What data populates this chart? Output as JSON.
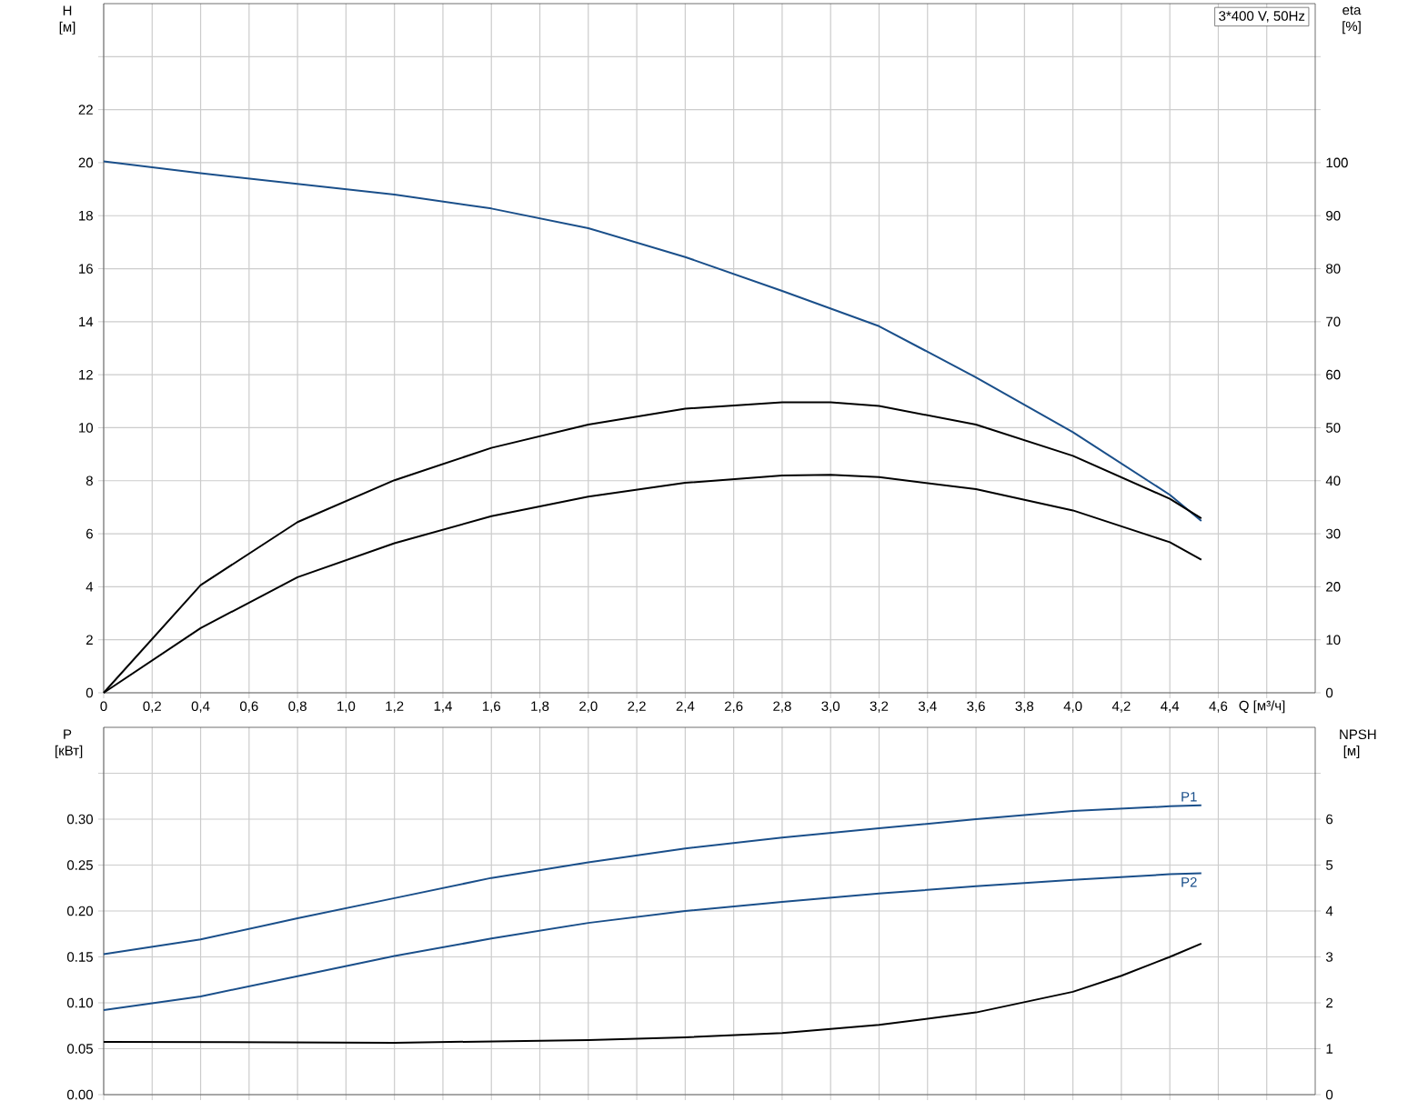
{
  "chart_data": [
    {
      "type": "line",
      "xlabel": "Q [м³/ч]",
      "ylabel": "H [м]",
      "y2label": "eta [%]",
      "annotations": [
        "3*400 V, 50Hz"
      ],
      "grid": true,
      "marker": "none",
      "line_style": "solid",
      "xlim": [
        0,
        5
      ],
      "xticks": [
        0,
        {
          "value": 0.2,
          "label": "0,2"
        },
        {
          "value": 0.4,
          "label": "0,4"
        },
        {
          "value": 0.6,
          "label": "0,6"
        },
        {
          "value": 0.8,
          "label": "0,8"
        },
        {
          "value": 1.0,
          "label": "1,0"
        },
        {
          "value": 1.2,
          "label": "1,2"
        },
        {
          "value": 1.4,
          "label": "1,4"
        },
        {
          "value": 1.6,
          "label": "1,6"
        },
        {
          "value": 1.8,
          "label": "1,8"
        },
        {
          "value": 2.0,
          "label": "2,0"
        },
        {
          "value": 2.2,
          "label": "2,2"
        },
        {
          "value": 2.4,
          "label": "2,4"
        },
        {
          "value": 2.6,
          "label": "2,6"
        },
        {
          "value": 2.8,
          "label": "2,8"
        },
        {
          "value": 3.0,
          "label": "3,0"
        },
        {
          "value": 3.2,
          "label": "3,2"
        },
        {
          "value": 3.4,
          "label": "3,4"
        },
        {
          "value": 3.6,
          "label": "3,6"
        },
        {
          "value": 3.8,
          "label": "3,8"
        },
        {
          "value": 4.0,
          "label": "4,0"
        },
        {
          "value": 4.2,
          "label": "4,2"
        },
        {
          "value": 4.4,
          "label": "4,4"
        },
        {
          "value": 4.6,
          "label": "4,6"
        },
        {
          "value": 4.8,
          "label": null
        }
      ],
      "ylim": [
        0,
        26
      ],
      "yticks": [
        0,
        2,
        4,
        6,
        8,
        10,
        12,
        14,
        16,
        18,
        20,
        22,
        {
          "value": 24,
          "label": null
        }
      ],
      "y2lim": [
        0,
        130
      ],
      "y2ticks": [
        0,
        10,
        20,
        30,
        40,
        50,
        60,
        70,
        80,
        90,
        100,
        {
          "value": 110,
          "label": null
        },
        {
          "value": 120,
          "label": null
        }
      ],
      "series": [
        {
          "color": "#1a4f8a",
          "axis": "y",
          "x": [
            0,
            0.4,
            0.8,
            1.2,
            1.6,
            2.0,
            2.4,
            2.8,
            3.2,
            3.6,
            4.0,
            4.4,
            4.53
          ],
          "values": [
            20.05,
            19.6,
            19.2,
            18.8,
            18.27,
            17.53,
            16.44,
            15.16,
            13.83,
            11.9,
            9.83,
            7.47,
            6.48
          ]
        },
        {
          "color": "#000000",
          "axis": "y2",
          "x": [
            0,
            0.4,
            0.8,
            1.2,
            1.6,
            2.0,
            2.4,
            2.8,
            3.0,
            3.2,
            3.6,
            4.0,
            4.4,
            4.53
          ],
          "values": [
            0,
            20.3,
            32.2,
            40.1,
            46.2,
            50.6,
            53.6,
            54.8,
            54.8,
            54.1,
            50.6,
            44.7,
            36.6,
            32.9
          ]
        },
        {
          "color": "#000000",
          "axis": "y2",
          "x": [
            0,
            0.4,
            0.8,
            1.2,
            1.6,
            2.0,
            2.4,
            2.8,
            3.0,
            3.2,
            3.6,
            4.0,
            4.4,
            4.53
          ],
          "values": [
            0,
            12.2,
            21.8,
            28.2,
            33.3,
            37.0,
            39.6,
            41.0,
            41.1,
            40.7,
            38.4,
            34.4,
            28.4,
            25.1
          ]
        }
      ]
    },
    {
      "type": "line",
      "ylabel": "P [кВт]",
      "y2label": "NPSH [м]",
      "grid": true,
      "marker": "none",
      "line_style": "solid",
      "tick_labels": "y",
      "xlim": [
        0,
        5
      ],
      "xticks": [
        0,
        0.2,
        0.4,
        0.6,
        0.8,
        1.0,
        1.2,
        1.4,
        1.6,
        1.8,
        2.0,
        2.2,
        2.4,
        2.6,
        2.8,
        3.0,
        3.2,
        3.4,
        3.6,
        3.8,
        4.0,
        4.2,
        4.4,
        4.6,
        4.8
      ],
      "ylim": [
        0,
        0.4
      ],
      "yticks": [
        {
          "value": 0,
          "label": "0.00"
        },
        {
          "value": 0.05,
          "label": "0.05"
        },
        {
          "value": 0.1,
          "label": "0.10"
        },
        {
          "value": 0.15,
          "label": "0.15"
        },
        {
          "value": 0.2,
          "label": "0.20"
        },
        {
          "value": 0.25,
          "label": "0.25"
        },
        {
          "value": 0.3,
          "label": "0.30"
        },
        {
          "value": 0.35,
          "label": null
        }
      ],
      "y2lim": [
        0,
        8
      ],
      "y2ticks": [
        0,
        1,
        2,
        3,
        4,
        5,
        6,
        {
          "value": 7,
          "label": null
        }
      ],
      "series": [
        {
          "name": "P1",
          "color": "#1a4f8a",
          "axis": "y",
          "x": [
            0,
            0.4,
            0.8,
            1.2,
            1.6,
            2.0,
            2.4,
            2.8,
            3.2,
            3.6,
            4.0,
            4.4,
            4.53
          ],
          "values": [
            0.153,
            0.169,
            0.192,
            0.214,
            0.236,
            0.253,
            0.268,
            0.28,
            0.29,
            0.3,
            0.309,
            0.314,
            0.315
          ]
        },
        {
          "name": "P2",
          "color": "#1a4f8a",
          "axis": "y",
          "x": [
            0,
            0.4,
            0.8,
            1.2,
            1.6,
            2.0,
            2.4,
            2.8,
            3.2,
            3.6,
            4.0,
            4.4,
            4.53
          ],
          "values": [
            0.092,
            0.107,
            0.129,
            0.151,
            0.17,
            0.187,
            0.2,
            0.21,
            0.219,
            0.227,
            0.234,
            0.24,
            0.241
          ]
        },
        {
          "color": "#000000",
          "axis": "y2",
          "x": [
            0,
            1.2,
            2.0,
            2.4,
            2.8,
            3.2,
            3.6,
            4.0,
            4.2,
            4.4,
            4.53
          ],
          "values": [
            1.15,
            1.13,
            1.19,
            1.25,
            1.34,
            1.52,
            1.79,
            2.24,
            2.59,
            3.0,
            3.29
          ]
        }
      ]
    }
  ]
}
